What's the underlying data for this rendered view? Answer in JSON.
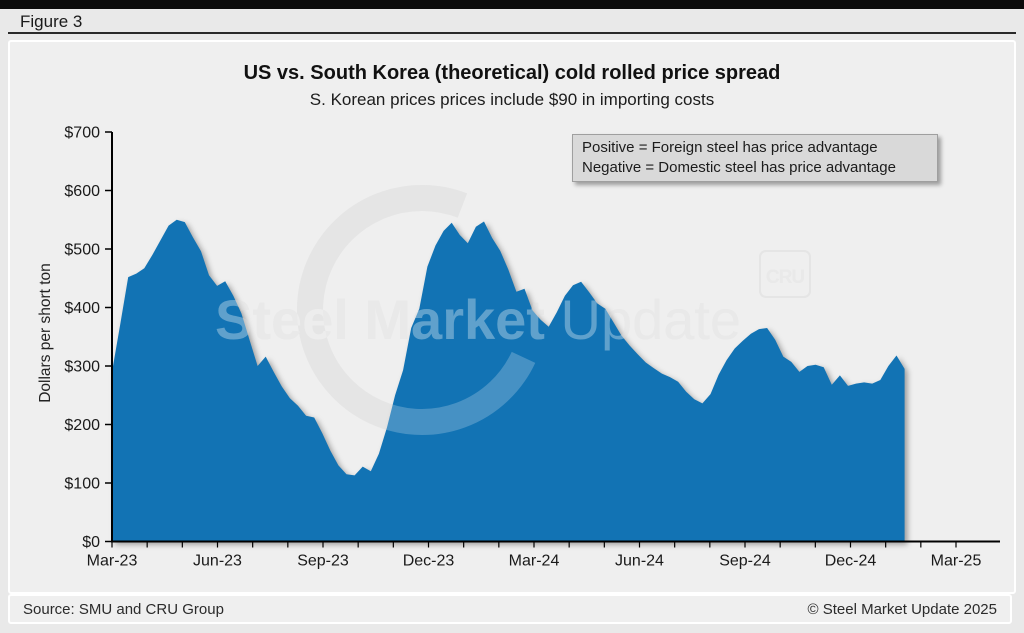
{
  "header": {
    "figure_label": "Figure 3"
  },
  "chart": {
    "title": "US vs. South Korea (theoretical) cold rolled price spread",
    "subtitle": "S. Korean prices prices include $90 in importing costs",
    "note_lines": [
      "Positive = Foreign steel has price advantage",
      "Negative = Domestic steel has price advantage"
    ],
    "y_axis_label": "Dollars per short ton"
  },
  "watermark": {
    "text_bold": "Steel Market",
    "text_light": " Update",
    "cru_label": "CRU"
  },
  "footer": {
    "source": "Source: SMU and CRU Group",
    "copyright": "© Steel Market Update 2025"
  },
  "colors": {
    "area": "#1273b4",
    "panel_bg": "#efefef",
    "page_bg": "#e9e9e9",
    "note_bg": "#d9d9d9",
    "axis": "#000000"
  },
  "chart_data": {
    "type": "area",
    "title": "US vs. South Korea (theoretical) cold rolled price spread",
    "subtitle": "S. Korean prices prices include $90 in importing costs",
    "ylabel": "Dollars per short ton",
    "ylim": [
      0,
      700
    ],
    "grid": false,
    "legend_position": "none",
    "series_name": "US minus South Korea (theoretical) cold rolled price spread, $ per short ton",
    "interval": "weekly",
    "start_date": "2023-03-03",
    "end_date": "2025-01-17",
    "x_tick_labels": [
      "Mar-23",
      "Jun-23",
      "Sep-23",
      "Dec-23",
      "Mar-24",
      "Jun-24",
      "Sep-24",
      "Dec-24",
      "Mar-25"
    ],
    "y_tick_labels": [
      "$0",
      "$100",
      "$200",
      "$300",
      "$400",
      "$500",
      "$600",
      "$700"
    ],
    "values": [
      290,
      370,
      452,
      458,
      467,
      490,
      515,
      540,
      550,
      546,
      520,
      496,
      455,
      437,
      445,
      420,
      390,
      345,
      300,
      316,
      290,
      265,
      245,
      232,
      215,
      212,
      185,
      155,
      130,
      115,
      113,
      128,
      120,
      150,
      195,
      250,
      293,
      365,
      398,
      470,
      506,
      531,
      545,
      524,
      510,
      538,
      547,
      519,
      497,
      465,
      427,
      432,
      395,
      379,
      367,
      392,
      420,
      438,
      444,
      426,
      407,
      398,
      375,
      352,
      335,
      320,
      306,
      296,
      287,
      281,
      273,
      256,
      243,
      236,
      252,
      285,
      310,
      330,
      343,
      355,
      363,
      365,
      345,
      316,
      307,
      290,
      300,
      302,
      298,
      268,
      284,
      266,
      270,
      272,
      270,
      276,
      300,
      318,
      295
    ]
  }
}
